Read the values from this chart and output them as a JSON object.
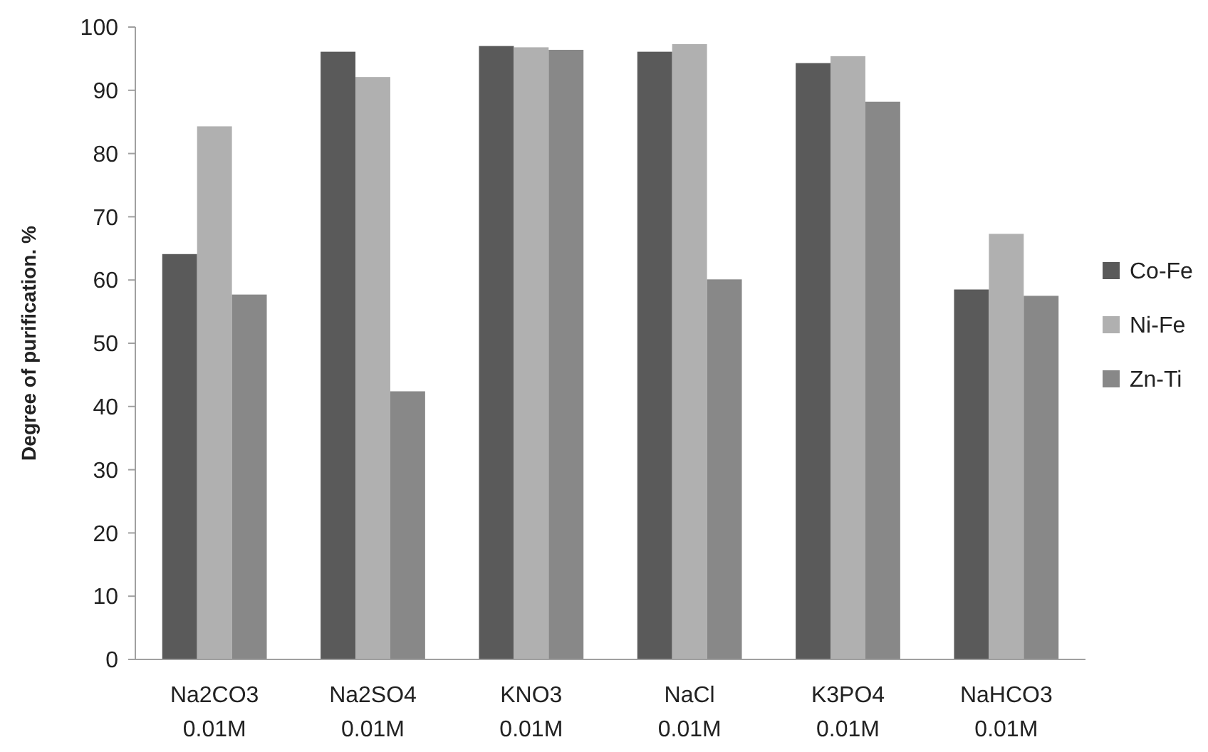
{
  "chart_data": {
    "type": "bar",
    "ylabel": "Degree of purification. %",
    "categories": [
      "Na2CO3 0.01M",
      "Na2SO4 0.01M",
      "KNO3 0.01M",
      "NaCl 0.01M",
      "K3PO4 0.01M",
      "NaHCO3 0.01M"
    ],
    "series": [
      {
        "name": "Co-Fe",
        "color": "#5a5a5a",
        "values": [
          64.1,
          96.1,
          97.0,
          96.1,
          94.3,
          58.5
        ]
      },
      {
        "name": "Ni-Fe",
        "color": "#b0b0b0",
        "values": [
          84.3,
          92.1,
          96.8,
          97.3,
          95.4,
          67.3
        ]
      },
      {
        "name": "Zn-Ti",
        "color": "#888888",
        "values": [
          57.7,
          42.4,
          96.4,
          60.1,
          88.2,
          57.5
        ]
      }
    ],
    "ylim": [
      0,
      100
    ],
    "yticks": [
      0,
      10,
      20,
      30,
      40,
      50,
      60,
      70,
      80,
      90,
      100
    ],
    "grid": false,
    "legend": "right"
  }
}
